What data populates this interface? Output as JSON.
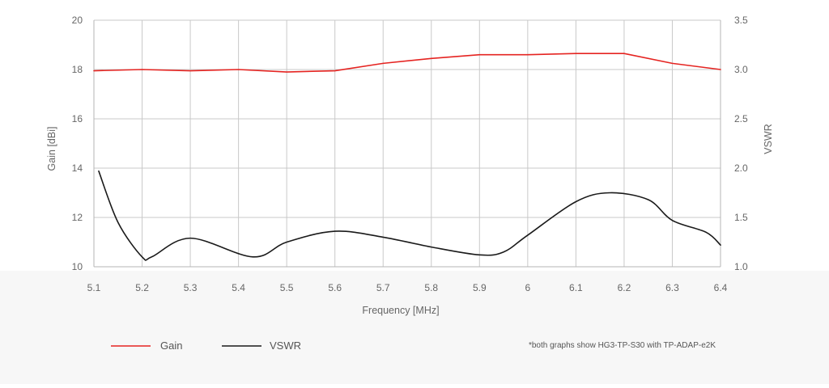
{
  "chart_data": {
    "type": "line",
    "xlabel": "Frequency [MHz]",
    "ylabel_left": "Gain [dBi]",
    "ylabel_right": "VSWR",
    "xlim": [
      5.1,
      6.4
    ],
    "ylim_left": [
      10,
      20
    ],
    "ylim_right": [
      1.0,
      3.5
    ],
    "x_ticks": [
      "5.1",
      "5.2",
      "5.3",
      "5.4",
      "5.5",
      "5.6",
      "5.7",
      "5.8",
      "5.9",
      "6",
      "6.1",
      "6.2",
      "6.3",
      "6.4"
    ],
    "y_ticks_left": [
      "10",
      "12",
      "14",
      "16",
      "18",
      "20"
    ],
    "y_ticks_right": [
      "1.0",
      "1.5",
      "2.0",
      "2.5",
      "3.0",
      "3.5"
    ],
    "grid": true,
    "legend_position": "bottom-left",
    "series": [
      {
        "name": "Gain",
        "axis": "left",
        "color": "#e52421",
        "x": [
          5.1,
          5.2,
          5.3,
          5.4,
          5.5,
          5.6,
          5.7,
          5.8,
          5.9,
          6.0,
          6.1,
          6.2,
          6.3,
          6.4
        ],
        "values": [
          17.95,
          18.0,
          17.95,
          18.0,
          17.9,
          17.95,
          18.25,
          18.45,
          18.6,
          18.6,
          18.65,
          18.65,
          18.25,
          18.0
        ]
      },
      {
        "name": "VSWR",
        "axis": "right",
        "color": "#1a1a1a",
        "x": [
          5.11,
          5.15,
          5.2,
          5.22,
          5.3,
          5.43,
          5.5,
          5.6,
          5.7,
          5.8,
          5.9,
          5.95,
          6.0,
          6.1,
          6.17,
          6.25,
          6.3,
          6.37,
          6.4
        ],
        "values": [
          1.97,
          1.45,
          1.1,
          1.1,
          1.29,
          1.1,
          1.25,
          1.36,
          1.3,
          1.2,
          1.12,
          1.15,
          1.32,
          1.66,
          1.75,
          1.68,
          1.47,
          1.35,
          1.22
        ]
      }
    ],
    "footnote": "*both graphs show HG3-TP-S30 with TP-ADAP-e2K"
  }
}
